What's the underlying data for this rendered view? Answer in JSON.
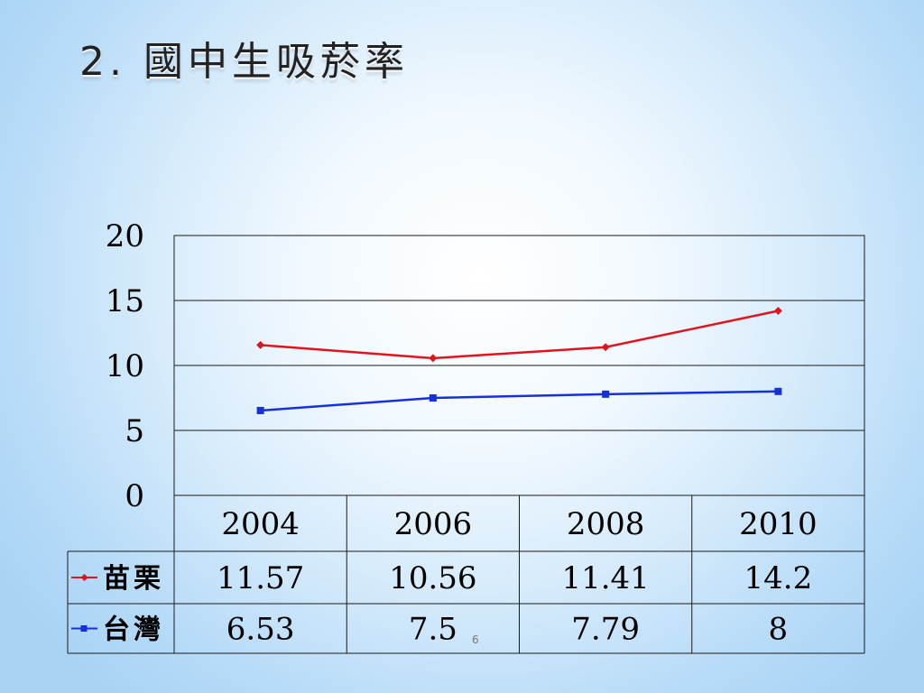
{
  "slide": {
    "title": "2. 國中生吸菸率",
    "number": "6"
  },
  "chart_data": {
    "type": "line",
    "title": "",
    "xlabel": "",
    "ylabel": "",
    "categories": [
      "2004",
      "2006",
      "2008",
      "2010"
    ],
    "ylim": [
      0,
      20
    ],
    "yticks": [
      0,
      5,
      10,
      15,
      20
    ],
    "grid": true,
    "legend": "data-table",
    "series": [
      {
        "name": "苗栗",
        "color": "#e0141e",
        "marker": "diamond",
        "values": [
          11.57,
          10.56,
          11.41,
          14.2
        ],
        "labels": [
          "11.57",
          "10.56",
          "11.41",
          "14.2"
        ]
      },
      {
        "name": "台灣",
        "color": "#1530e0",
        "marker": "square",
        "values": [
          6.53,
          7.5,
          7.79,
          8
        ],
        "labels": [
          "6.53",
          "7.5",
          "7.79",
          "8"
        ]
      }
    ]
  }
}
